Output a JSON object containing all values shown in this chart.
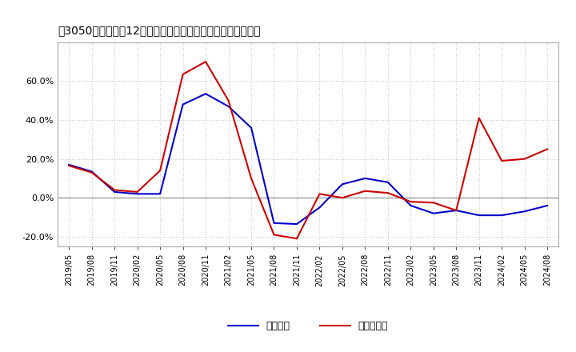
{
  "title": "［3050］　利益の12か月移動合計の対前年同期増減率の推移",
  "x_labels": [
    "2019/05",
    "2019/08",
    "2019/11",
    "2020/02",
    "2020/05",
    "2020/08",
    "2020/11",
    "2021/02",
    "2021/05",
    "2021/08",
    "2021/11",
    "2022/02",
    "2022/05",
    "2022/08",
    "2022/11",
    "2023/02",
    "2023/05",
    "2023/08",
    "2023/11",
    "2024/02",
    "2024/05",
    "2024/08"
  ],
  "operating_profit": [
    0.17,
    0.135,
    0.03,
    0.02,
    0.02,
    0.48,
    0.535,
    0.47,
    0.36,
    -0.13,
    -0.135,
    -0.05,
    0.07,
    0.1,
    0.08,
    -0.04,
    -0.08,
    -0.065,
    -0.09,
    -0.09,
    -0.07,
    -0.04
  ],
  "net_profit": [
    0.165,
    0.13,
    0.04,
    0.03,
    0.14,
    0.635,
    0.7,
    0.5,
    0.1,
    -0.19,
    -0.21,
    0.02,
    0.0,
    0.035,
    0.025,
    -0.02,
    -0.025,
    -0.065,
    0.41,
    0.19,
    0.2,
    0.25
  ],
  "operating_color": "#0000cc",
  "net_color": "#cc0000",
  "ylim": [
    -0.25,
    0.8
  ],
  "yticks": [
    -0.2,
    0.0,
    0.2,
    0.4,
    0.6
  ],
  "legend_labels": [
    "経常利益",
    "当期純利益"
  ],
  "background_color": "#ffffff",
  "grid_color": "#cccccc",
  "line_width": 1.5
}
